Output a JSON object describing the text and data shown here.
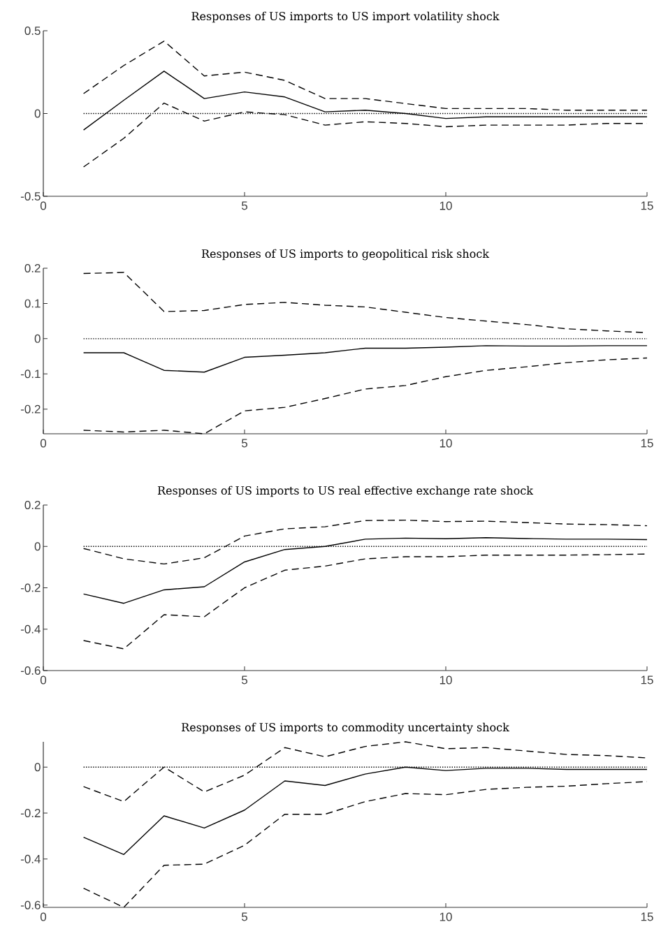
{
  "chart_data": [
    {
      "type": "line",
      "title": "Responses of US imports to US import volatility shock",
      "x": [
        1,
        2,
        3,
        4,
        5,
        6,
        7,
        8,
        9,
        10,
        11,
        12,
        13,
        14,
        15
      ],
      "xlim": [
        0,
        15
      ],
      "xticks": [
        0,
        5,
        10,
        15
      ],
      "ylim": [
        -0.5,
        0.5
      ],
      "yticks": [
        -0.5,
        0,
        0.5
      ],
      "series": [
        {
          "color": "#000000",
          "line_style": "dashed",
          "values": [
            0.12,
            0.29,
            0.437,
            0.227,
            0.25,
            0.2,
            0.09,
            0.09,
            0.06,
            0.03,
            0.03,
            0.03,
            0.02,
            0.02,
            0.02
          ]
        },
        {
          "color": "#000000",
          "line_style": "solid",
          "values": [
            -0.1,
            0.08,
            0.256,
            0.09,
            0.13,
            0.1,
            0.01,
            0.02,
            0,
            -0.03,
            -0.02,
            -0.02,
            -0.02,
            -0.02,
            -0.02
          ]
        },
        {
          "color": "#000000",
          "line_style": "dashed",
          "values": [
            -0.323,
            -0.15,
            0.063,
            -0.046,
            0.01,
            -0.007,
            -0.07,
            -0.05,
            -0.06,
            -0.08,
            -0.07,
            -0.07,
            -0.07,
            -0.06,
            -0.06
          ]
        },
        {
          "color": "#000000",
          "line_style": "dotted",
          "values": [
            0,
            0,
            0,
            0,
            0,
            0,
            0,
            0,
            0,
            0,
            0,
            0,
            0,
            0,
            0
          ]
        }
      ]
    },
    {
      "type": "line",
      "title": "Responses of US imports to geopolitical risk shock",
      "x": [
        1,
        2,
        3,
        4,
        5,
        6,
        7,
        8,
        9,
        10,
        11,
        12,
        13,
        14,
        15
      ],
      "xlim": [
        0,
        15
      ],
      "xticks": [
        0,
        5,
        10,
        15
      ],
      "ylim": [
        -0.27,
        0.2
      ],
      "yticks": [
        -0.2,
        -0.1,
        0,
        0.1,
        0.2
      ],
      "series": [
        {
          "color": "#000000",
          "line_style": "dashed",
          "values": [
            0.185,
            0.188,
            0.077,
            0.08,
            0.097,
            0.103,
            0.095,
            0.09,
            0.075,
            0.06,
            0.05,
            0.04,
            0.028,
            0.022,
            0.017
          ]
        },
        {
          "color": "#000000",
          "line_style": "solid",
          "values": [
            -0.04,
            -0.04,
            -0.09,
            -0.095,
            -0.053,
            -0.047,
            -0.04,
            -0.027,
            -0.027,
            -0.024,
            -0.02,
            -0.021,
            -0.021,
            -0.02,
            -0.02
          ]
        },
        {
          "color": "#000000",
          "line_style": "dashed",
          "values": [
            -0.26,
            -0.265,
            -0.26,
            -0.27,
            -0.205,
            -0.195,
            -0.17,
            -0.143,
            -0.133,
            -0.108,
            -0.09,
            -0.08,
            -0.068,
            -0.06,
            -0.055
          ]
        },
        {
          "color": "#000000",
          "line_style": "dotted",
          "values": [
            0,
            0,
            0,
            0,
            0,
            0,
            0,
            0,
            0,
            0,
            0,
            0,
            0,
            0,
            0
          ]
        }
      ]
    },
    {
      "type": "line",
      "title": "Responses of US imports to US real effective exchange rate shock",
      "x": [
        1,
        2,
        3,
        4,
        5,
        6,
        7,
        8,
        9,
        10,
        11,
        12,
        13,
        14,
        15
      ],
      "xlim": [
        0,
        15
      ],
      "xticks": [
        0,
        5,
        10,
        15
      ],
      "ylim": [
        -0.6,
        0.2
      ],
      "yticks": [
        -0.6,
        -0.4,
        -0.2,
        0,
        0.2
      ],
      "series": [
        {
          "color": "#000000",
          "line_style": "dashed",
          "values": [
            -0.01,
            -0.06,
            -0.085,
            -0.055,
            0.05,
            0.085,
            0.095,
            0.125,
            0.127,
            0.12,
            0.122,
            0.115,
            0.108,
            0.105,
            0.1
          ]
        },
        {
          "color": "#000000",
          "line_style": "solid",
          "values": [
            -0.23,
            -0.275,
            -0.21,
            -0.195,
            -0.075,
            -0.015,
            0,
            0.035,
            0.04,
            0.037,
            0.042,
            0.038,
            0.035,
            0.035,
            0.033
          ]
        },
        {
          "color": "#000000",
          "line_style": "dashed",
          "values": [
            -0.455,
            -0.495,
            -0.33,
            -0.34,
            -0.2,
            -0.115,
            -0.095,
            -0.06,
            -0.05,
            -0.05,
            -0.042,
            -0.042,
            -0.042,
            -0.04,
            -0.037
          ]
        },
        {
          "color": "#000000",
          "line_style": "dotted",
          "values": [
            0,
            0,
            0,
            0,
            0,
            0,
            0,
            0,
            0,
            0,
            0,
            0,
            0,
            0,
            0
          ]
        }
      ]
    },
    {
      "type": "line",
      "title": "Responses of US imports to commodity uncertainty shock",
      "x": [
        1,
        2,
        3,
        4,
        5,
        6,
        7,
        8,
        9,
        10,
        11,
        12,
        13,
        14,
        15
      ],
      "xlim": [
        0,
        15
      ],
      "xticks": [
        0,
        5,
        10,
        15
      ],
      "ylim": [
        -0.61,
        0.11
      ],
      "yticks": [
        -0.6,
        -0.4,
        -0.2,
        0
      ],
      "series": [
        {
          "color": "#000000",
          "line_style": "dashed",
          "values": [
            -0.085,
            -0.15,
            0,
            -0.108,
            -0.035,
            0.085,
            0.045,
            0.09,
            0.11,
            0.08,
            0.085,
            0.07,
            0.055,
            0.05,
            0.04
          ]
        },
        {
          "color": "#000000",
          "line_style": "solid",
          "values": [
            -0.305,
            -0.38,
            -0.212,
            -0.265,
            -0.187,
            -0.06,
            -0.08,
            -0.03,
            0,
            -0.015,
            -0.005,
            -0.005,
            -0.01,
            -0.01,
            -0.01
          ]
        },
        {
          "color": "#000000",
          "line_style": "dashed",
          "values": [
            -0.527,
            -0.61,
            -0.427,
            -0.422,
            -0.34,
            -0.205,
            -0.205,
            -0.15,
            -0.115,
            -0.12,
            -0.097,
            -0.088,
            -0.083,
            -0.072,
            -0.063
          ]
        },
        {
          "color": "#000000",
          "line_style": "dotted",
          "values": [
            0,
            0,
            0,
            0,
            0,
            0,
            0,
            0,
            0,
            0,
            0,
            0,
            0,
            0,
            0
          ]
        }
      ]
    }
  ]
}
